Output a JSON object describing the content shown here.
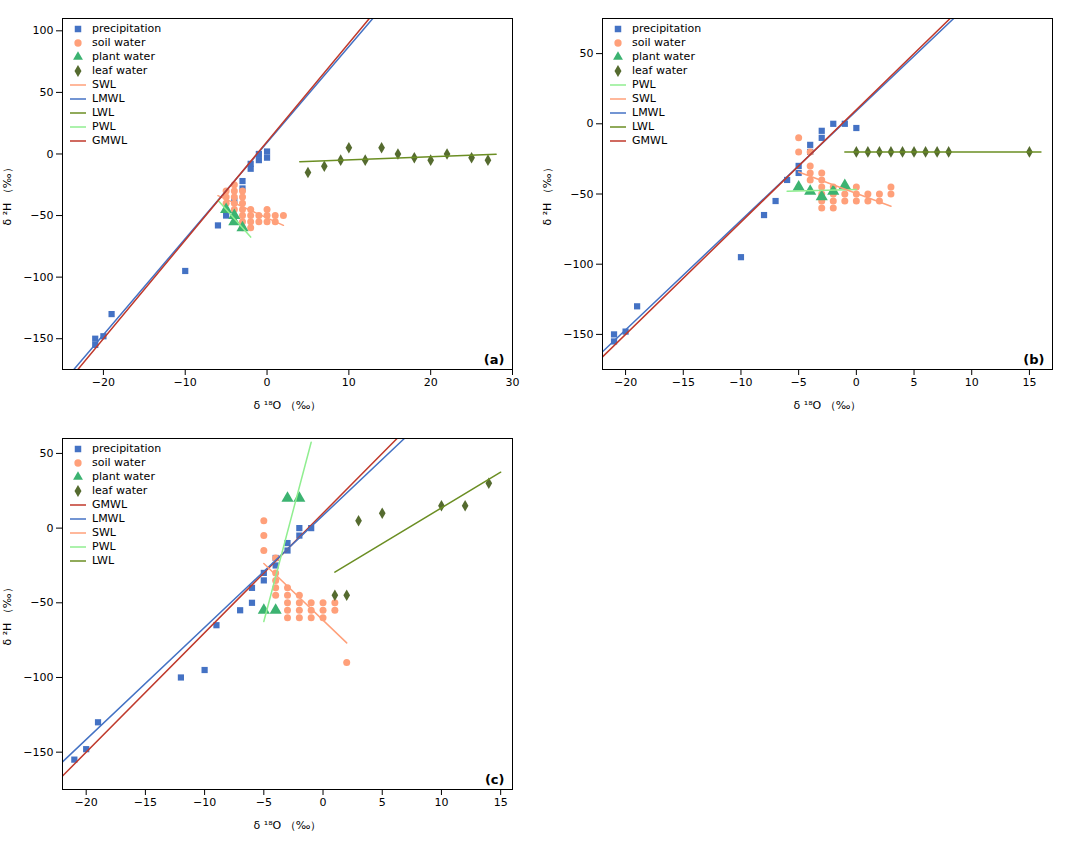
{
  "chart_data": [
    {
      "type": "scatter",
      "x_label": "δ ¹⁸O （‰）",
      "y_label": "δ ²H （‰）",
      "annotations": [
        "(a)"
      ],
      "xlim": [
        -25,
        30
      ],
      "ylim": [
        -175,
        110
      ],
      "xticks": [
        -20,
        -10,
        0,
        10,
        20,
        30
      ],
      "yticks": [
        -150,
        -100,
        -50,
        0,
        50,
        100
      ],
      "grid": false,
      "legend": "upper left",
      "series": [
        {
          "name": "precipitation",
          "color": "#4472C4",
          "marker": "square",
          "x": [
            -21,
            -21,
            -20,
            -19,
            -10,
            -6,
            -5,
            -4,
            -3,
            -3,
            -2,
            -2,
            -1,
            -1,
            0,
            0
          ],
          "values": [
            -155,
            -150,
            -148,
            -130,
            -95,
            -58,
            -50,
            -38,
            -28,
            -22,
            -12,
            -8,
            -5,
            0,
            -3,
            2
          ]
        },
        {
          "name": "soil water",
          "color": "#FFA07A",
          "marker": "circle",
          "x": [
            -5,
            -5,
            -5,
            -4,
            -4,
            -4,
            -4,
            -4,
            -3,
            -3,
            -3,
            -3,
            -3,
            -3,
            -3,
            -2,
            -2,
            -2,
            -2,
            -1,
            -1,
            0,
            0,
            0,
            1,
            1,
            2
          ],
          "values": [
            -30,
            -35,
            -40,
            -25,
            -30,
            -35,
            -40,
            -45,
            -30,
            -35,
            -40,
            -45,
            -50,
            -55,
            -60,
            -45,
            -50,
            -55,
            -60,
            -50,
            -55,
            -45,
            -50,
            -55,
            -50,
            -55,
            -50
          ]
        },
        {
          "name": "plant water",
          "color": "#3CB371",
          "marker": "triangle",
          "x": [
            -5,
            -4,
            -4,
            -3
          ],
          "values": [
            -45,
            -50,
            -55,
            -60
          ]
        },
        {
          "name": "leaf water",
          "color": "#556B2F",
          "marker": "diamond",
          "x": [
            5,
            7,
            9,
            10,
            12,
            14,
            16,
            18,
            20,
            22,
            25,
            27
          ],
          "values": [
            -15,
            -10,
            -5,
            5,
            -5,
            5,
            0,
            -3,
            -5,
            0,
            -3,
            -5
          ]
        },
        {
          "name": "SWL",
          "type": "line",
          "color": "#FFA07A",
          "x": [
            -6,
            2
          ],
          "values": [
            -33.8476,
            -57.9368
          ]
        },
        {
          "name": "LMWL",
          "type": "line",
          "color": "#4472C4",
          "x": [
            -23.6154,
            12.9231
          ],
          "values": [
            -175,
            110
          ]
        },
        {
          "name": "LWL",
          "type": "line",
          "color": "#6B8E23",
          "x": [
            4,
            28
          ],
          "values": [
            -6.2272,
            -0.319
          ]
        },
        {
          "name": "PWL",
          "type": "line",
          "color": "#90EE90",
          "x": [
            -6,
            -2
          ],
          "values": [
            -37.5,
            -67.5
          ]
        },
        {
          "name": "GMWL",
          "type": "line",
          "color": "#C0392B",
          "x": [
            -23.125,
            12.5
          ],
          "values": [
            -175,
            110
          ]
        }
      ]
    },
    {
      "type": "scatter",
      "x_label": "δ ¹⁸O （‰）",
      "y_label": "δ ²H （‰）",
      "annotations": [
        "(b)"
      ],
      "xlim": [
        -22,
        17
      ],
      "ylim": [
        -175,
        75
      ],
      "xticks": [
        -20,
        -15,
        -10,
        -5,
        0,
        5,
        10,
        15
      ],
      "yticks": [
        -150,
        -100,
        -50,
        0,
        50
      ],
      "grid": false,
      "legend": "upper left",
      "series": [
        {
          "name": "precipitation",
          "color": "#4472C4",
          "marker": "square",
          "x": [
            -21,
            -21,
            -20,
            -19,
            -10,
            -8,
            -7,
            -6,
            -5,
            -5,
            -4,
            -4,
            -3,
            -3,
            -2,
            -1,
            0
          ],
          "values": [
            -155,
            -150,
            -148,
            -130,
            -95,
            -65,
            -55,
            -40,
            -35,
            -30,
            -20,
            -15,
            -10,
            -5,
            0,
            0,
            -3
          ]
        },
        {
          "name": "soil water",
          "color": "#FFA07A",
          "marker": "circle",
          "x": [
            -5,
            -5,
            -4,
            -4,
            -4,
            -4,
            -3,
            -3,
            -3,
            -3,
            -3,
            -3,
            -2,
            -2,
            -2,
            -2,
            -1,
            -1,
            0,
            0,
            0,
            1,
            1,
            2,
            2,
            3,
            3
          ],
          "values": [
            -10,
            -20,
            -20,
            -30,
            -35,
            -40,
            -35,
            -40,
            -45,
            -50,
            -55,
            -60,
            -45,
            -50,
            -55,
            -60,
            -50,
            -55,
            -45,
            -50,
            -55,
            -50,
            -55,
            -50,
            -55,
            -45,
            -50
          ]
        },
        {
          "name": "plant water",
          "color": "#3CB371",
          "marker": "triangle",
          "x": [
            -5,
            -4,
            -3,
            -2,
            -1
          ],
          "values": [
            -45,
            -48,
            -52,
            -48,
            -44
          ]
        },
        {
          "name": "leaf water",
          "color": "#556B2F",
          "marker": "diamond",
          "x": [
            0,
            1,
            2,
            3,
            4,
            5,
            6,
            7,
            8,
            15
          ],
          "values": [
            -20,
            -20,
            -20,
            -20,
            -20,
            -20,
            -20,
            -20,
            -20,
            -20
          ]
        },
        {
          "name": "PWL",
          "type": "line",
          "color": "#90EE90",
          "x": [
            -6,
            0
          ],
          "values": [
            -48,
            -46.8
          ]
        },
        {
          "name": "SWL",
          "type": "line",
          "color": "#FFA07A",
          "x": [
            -5,
            3
          ],
          "values": [
            -34.3373,
            -58.6722
          ]
        },
        {
          "name": "LMWL",
          "type": "line",
          "color": "#4472C4",
          "x": [
            -22,
            8.4359
          ],
          "values": [
            -162.4,
            75
          ]
        },
        {
          "name": "LWL",
          "type": "line",
          "color": "#6B8E23",
          "x": [
            -1,
            16
          ],
          "values": [
            -20,
            -20
          ]
        },
        {
          "name": "GMWL",
          "type": "line",
          "color": "#C0392B",
          "x": [
            -22,
            8.125
          ],
          "values": [
            -166,
            75
          ]
        }
      ]
    },
    {
      "type": "scatter",
      "x_label": "δ ¹⁸O （‰）",
      "y_label": "δ ²H （‰）",
      "annotations": [
        "(c)"
      ],
      "xlim": [
        -22,
        16
      ],
      "ylim": [
        -175,
        60
      ],
      "xticks": [
        -20,
        -15,
        -10,
        -5,
        0,
        5,
        10,
        15
      ],
      "yticks": [
        -150,
        -100,
        -50,
        0,
        50
      ],
      "grid": false,
      "legend": "upper left",
      "series": [
        {
          "name": "precipitation",
          "color": "#4472C4",
          "marker": "square",
          "x": [
            -21,
            -20,
            -19,
            -12,
            -10,
            -9,
            -7,
            -6,
            -6,
            -5,
            -5,
            -4,
            -4,
            -3,
            -3,
            -2,
            -2,
            -1
          ],
          "values": [
            -155,
            -148,
            -130,
            -100,
            -95,
            -65,
            -55,
            -50,
            -40,
            -35,
            -30,
            -25,
            -20,
            -15,
            -10,
            -5,
            0,
            0
          ]
        },
        {
          "name": "soil water",
          "color": "#FFA07A",
          "marker": "circle",
          "x": [
            -5,
            -5,
            -5,
            -4,
            -4,
            -4,
            -4,
            -4,
            -3,
            -3,
            -3,
            -3,
            -3,
            -2,
            -2,
            -2,
            -2,
            -1,
            -1,
            -1,
            0,
            0,
            0,
            1,
            1,
            2
          ],
          "values": [
            5,
            -5,
            -15,
            -20,
            -30,
            -35,
            -40,
            -45,
            -40,
            -45,
            -50,
            -55,
            -60,
            -45,
            -50,
            -55,
            -60,
            -50,
            -55,
            -60,
            -50,
            -55,
            -60,
            -50,
            -55,
            -90
          ]
        },
        {
          "name": "plant water",
          "color": "#3CB371",
          "marker": "triangle",
          "x": [
            -5,
            -4,
            -3,
            -2
          ],
          "values": [
            -55,
            -55,
            20,
            20
          ]
        },
        {
          "name": "leaf water",
          "color": "#556B2F",
          "marker": "diamond",
          "x": [
            1,
            2,
            3,
            5,
            10,
            12,
            14
          ],
          "values": [
            -45,
            -45,
            5,
            10,
            15,
            15,
            30
          ]
        },
        {
          "name": "GMWL",
          "type": "line",
          "color": "#C0392B",
          "x": [
            -22,
            6.25
          ],
          "values": [
            -166,
            60
          ]
        },
        {
          "name": "LMWL",
          "type": "line",
          "color": "#4472C4",
          "x": [
            -22,
            6.8667
          ],
          "values": [
            -156.5,
            60
          ]
        },
        {
          "name": "SWL",
          "type": "line",
          "color": "#FFA07A",
          "x": [
            -5,
            2
          ],
          "values": [
            -23.6697,
            -76.8493
          ]
        },
        {
          "name": "PWL",
          "type": "line",
          "color": "#90EE90",
          "x": [
            -5,
            -1
          ],
          "values": [
            -62.5,
            57.5
          ]
        },
        {
          "name": "LWL",
          "type": "line",
          "color": "#6B8E23",
          "x": [
            1,
            15
          ],
          "values": [
            -29.4406,
            37.4388
          ]
        }
      ]
    }
  ]
}
